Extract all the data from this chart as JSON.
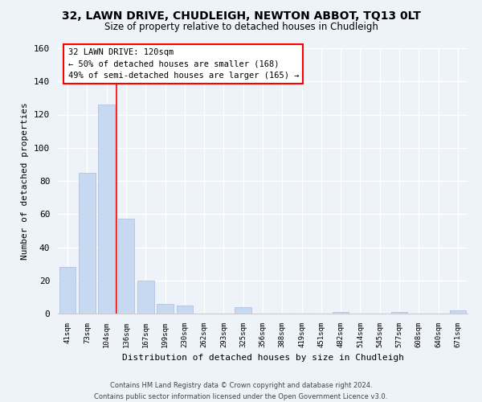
{
  "title": "32, LAWN DRIVE, CHUDLEIGH, NEWTON ABBOT, TQ13 0LT",
  "subtitle": "Size of property relative to detached houses in Chudleigh",
  "xlabel": "Distribution of detached houses by size in Chudleigh",
  "ylabel": "Number of detached properties",
  "bar_labels": [
    "41sqm",
    "73sqm",
    "104sqm",
    "136sqm",
    "167sqm",
    "199sqm",
    "230sqm",
    "262sqm",
    "293sqm",
    "325sqm",
    "356sqm",
    "388sqm",
    "419sqm",
    "451sqm",
    "482sqm",
    "514sqm",
    "545sqm",
    "577sqm",
    "608sqm",
    "640sqm",
    "671sqm"
  ],
  "bar_values": [
    28,
    85,
    126,
    57,
    20,
    6,
    5,
    0,
    0,
    4,
    0,
    0,
    0,
    0,
    1,
    0,
    0,
    1,
    0,
    0,
    2
  ],
  "bar_color": "#c6d9f0",
  "annotation_title": "32 LAWN DRIVE: 120sqm",
  "annotation_line1": "← 50% of detached houses are smaller (168)",
  "annotation_line2": "49% of semi-detached houses are larger (165) →",
  "footer_line1": "Contains HM Land Registry data © Crown copyright and database right 2024.",
  "footer_line2": "Contains public sector information licensed under the Open Government Licence v3.0.",
  "ylim": [
    0,
    160
  ],
  "yticks": [
    0,
    20,
    40,
    60,
    80,
    100,
    120,
    140,
    160
  ],
  "background_color": "#eef2f9",
  "grid_color": "#ffffff",
  "red_line_x": 2.5
}
